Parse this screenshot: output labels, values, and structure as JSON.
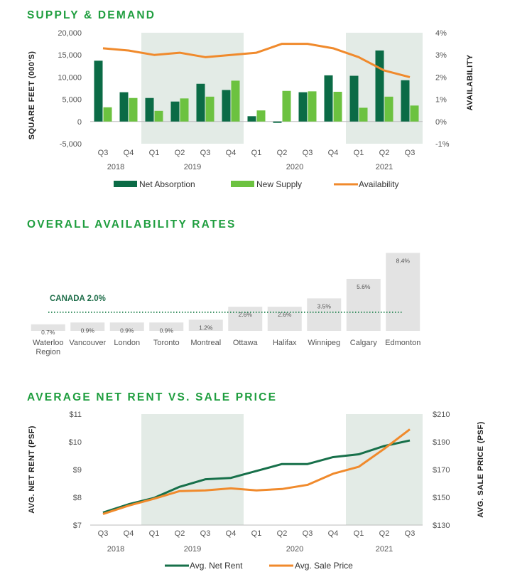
{
  "colors": {
    "heading": "#1f9e3f",
    "net_absorption": "#0b6b46",
    "new_supply": "#6cc240",
    "availability": "#f08a2c",
    "net_rent": "#17704a",
    "sale_price": "#f08a2c",
    "shade": "#e3ebe6",
    "bar_grey": "#e3e3e3",
    "canada_line": "#2e8a5a"
  },
  "supply_demand": {
    "heading": "SUPPLY & DEMAND",
    "chart_data": {
      "type": "bar+line",
      "quarters": [
        "Q3",
        "Q4",
        "Q1",
        "Q2",
        "Q3",
        "Q4",
        "Q1",
        "Q2",
        "Q3",
        "Q4",
        "Q1",
        "Q2",
        "Q3"
      ],
      "years": [
        {
          "label": "2018",
          "from": 0,
          "to": 1
        },
        {
          "label": "2019",
          "from": 2,
          "to": 5
        },
        {
          "label": "2020",
          "from": 6,
          "to": 9
        },
        {
          "label": "2021",
          "from": 10,
          "to": 12
        }
      ],
      "shaded_ranges": [
        [
          2,
          5
        ],
        [
          10,
          12
        ]
      ],
      "ylabel": "SQUARE FEET (000'S)",
      "y2label": "AVAILABILITY",
      "ylim": [
        -5000,
        20000
      ],
      "y_ticks": [
        -5000,
        0,
        5000,
        10000,
        15000,
        20000
      ],
      "y_tick_labels": [
        "-5,000",
        "0",
        "5,000",
        "10,000",
        "15,000",
        "20,000"
      ],
      "y2lim": [
        -1,
        4
      ],
      "y2_ticks": [
        -1,
        0,
        1,
        2,
        3,
        4
      ],
      "y2_tick_labels": [
        "-1%",
        "0%",
        "1%",
        "2%",
        "3%",
        "4%"
      ],
      "series": [
        {
          "name": "Net Absorption",
          "kind": "bar",
          "values": [
            13700,
            6600,
            5300,
            4500,
            8500,
            7100,
            1200,
            -300,
            6600,
            10400,
            10300,
            16000,
            9300
          ]
        },
        {
          "name": "New Supply",
          "kind": "bar",
          "values": [
            3200,
            5300,
            2400,
            5200,
            5600,
            9200,
            2500,
            6900,
            6800,
            6700,
            3100,
            5600,
            3600
          ]
        },
        {
          "name": "Availability",
          "kind": "line",
          "axis": "y2",
          "values": [
            3.3,
            3.2,
            3.0,
            3.1,
            2.9,
            3.0,
            3.1,
            3.5,
            3.5,
            3.3,
            2.9,
            2.3,
            2.0
          ]
        }
      ],
      "legend": [
        "Net Absorption",
        "New Supply",
        "Availability"
      ],
      "legend_position": "bottom"
    }
  },
  "availability_rates": {
    "heading": "OVERALL AVAILABILITY RATES",
    "chart_data": {
      "type": "bar",
      "categories": [
        "Waterloo Region",
        "Vancouver",
        "London",
        "Toronto",
        "Montreal",
        "Ottawa",
        "Halifax",
        "Winnipeg",
        "Calgary",
        "Edmonton"
      ],
      "category_lines": [
        [
          "Waterloo",
          "Region"
        ],
        [
          "Vancouver"
        ],
        [
          "London"
        ],
        [
          "Toronto"
        ],
        [
          "Montreal"
        ],
        [
          "Ottawa"
        ],
        [
          "Halifax"
        ],
        [
          "Winnipeg"
        ],
        [
          "Calgary"
        ],
        [
          "Edmonton"
        ]
      ],
      "values": [
        0.7,
        0.9,
        0.9,
        0.9,
        1.2,
        2.6,
        2.6,
        3.5,
        5.6,
        8.4
      ],
      "value_labels": [
        "0.7%",
        "0.9%",
        "0.9%",
        "0.9%",
        "1.2%",
        "2.6%",
        "2.6%",
        "3.5%",
        "5.6%",
        "8.4%"
      ],
      "ylim": [
        0,
        9.2
      ],
      "reference": {
        "label": "CANADA 2.0%",
        "value": 2.0
      }
    }
  },
  "rent_vs_price": {
    "heading": "AVERAGE NET RENT VS. SALE PRICE",
    "chart_data": {
      "type": "line",
      "quarters": [
        "Q3",
        "Q4",
        "Q1",
        "Q2",
        "Q3",
        "Q4",
        "Q1",
        "Q2",
        "Q3",
        "Q4",
        "Q1",
        "Q2",
        "Q3"
      ],
      "years": [
        {
          "label": "2018",
          "from": 0,
          "to": 1
        },
        {
          "label": "2019",
          "from": 2,
          "to": 5
        },
        {
          "label": "2020",
          "from": 6,
          "to": 9
        },
        {
          "label": "2021",
          "from": 10,
          "to": 12
        }
      ],
      "shaded_ranges": [
        [
          2,
          5
        ],
        [
          10,
          12
        ]
      ],
      "ylabel": "AVG. NET RENT (PSF)",
      "y2label": "AVG. SALE PRICE (PSF)",
      "ylim": [
        7,
        11
      ],
      "y_ticks": [
        7,
        8,
        9,
        10,
        11
      ],
      "y_tick_labels": [
        "$7",
        "$8",
        "$9",
        "$10",
        "$11"
      ],
      "y2lim": [
        130,
        210
      ],
      "y2_ticks": [
        130,
        150,
        170,
        190,
        210
      ],
      "y2_tick_labels": [
        "$130",
        "$150",
        "$170",
        "$190",
        "$210"
      ],
      "series": [
        {
          "name": "Avg. Net Rent",
          "axis": "y",
          "values": [
            7.45,
            7.75,
            7.98,
            8.38,
            8.65,
            8.7,
            8.95,
            9.2,
            9.2,
            9.45,
            9.55,
            9.85,
            10.05
          ]
        },
        {
          "name": "Avg. Sale Price",
          "axis": "y2",
          "values": [
            138,
            144,
            149,
            154.5,
            155,
            156.5,
            155,
            156,
            159,
            167,
            172,
            185,
            199
          ]
        }
      ],
      "legend": [
        "Avg. Net Rent",
        "Avg. Sale Price"
      ],
      "legend_position": "bottom"
    }
  }
}
